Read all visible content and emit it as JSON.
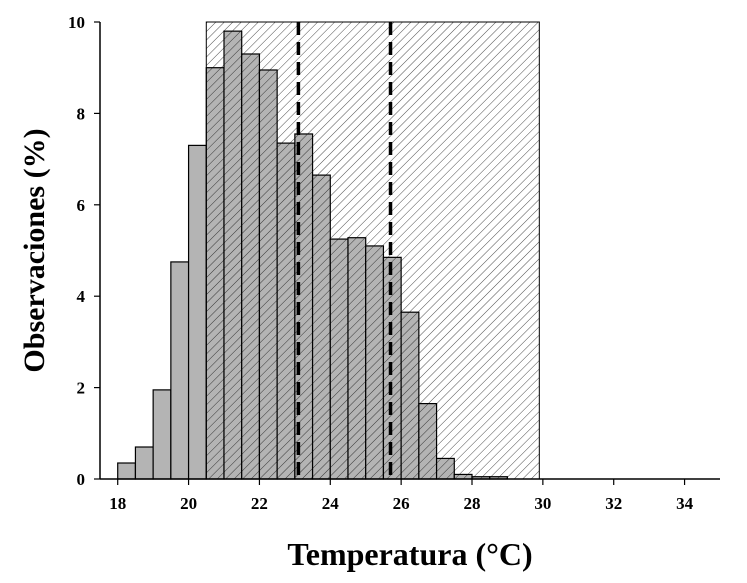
{
  "chart_data": {
    "type": "bar",
    "title": "",
    "xlabel": "Temperatura (°C)",
    "ylabel": "Observaciones (%)",
    "xlim": [
      17.5,
      35
    ],
    "ylim": [
      0,
      10
    ],
    "x_ticks": [
      18,
      20,
      22,
      24,
      26,
      28,
      30,
      32,
      34
    ],
    "y_ticks": [
      0,
      2,
      4,
      6,
      8,
      10
    ],
    "bin_width": 0.5,
    "bins": [
      {
        "start": 18.0,
        "value": 0.35
      },
      {
        "start": 18.5,
        "value": 0.7
      },
      {
        "start": 19.0,
        "value": 1.95
      },
      {
        "start": 19.5,
        "value": 4.75
      },
      {
        "start": 20.0,
        "value": 7.3
      },
      {
        "start": 20.5,
        "value": 9.0
      },
      {
        "start": 21.0,
        "value": 9.8
      },
      {
        "start": 21.5,
        "value": 9.3
      },
      {
        "start": 22.0,
        "value": 8.95
      },
      {
        "start": 22.5,
        "value": 7.35
      },
      {
        "start": 23.0,
        "value": 7.55
      },
      {
        "start": 23.5,
        "value": 6.65
      },
      {
        "start": 24.0,
        "value": 5.25
      },
      {
        "start": 24.5,
        "value": 5.28
      },
      {
        "start": 25.0,
        "value": 5.1
      },
      {
        "start": 25.5,
        "value": 4.85
      },
      {
        "start": 26.0,
        "value": 3.65
      },
      {
        "start": 26.5,
        "value": 1.65
      },
      {
        "start": 27.0,
        "value": 0.45
      },
      {
        "start": 27.5,
        "value": 0.1
      },
      {
        "start": 28.0,
        "value": 0.05
      },
      {
        "start": 28.5,
        "value": 0.05
      }
    ],
    "shaded_region": {
      "x_start": 20.5,
      "x_end": 29.9,
      "pattern": "diagonal-hatch"
    },
    "vertical_lines": [
      {
        "x": 23.1,
        "style": "dashed"
      },
      {
        "x": 25.7,
        "style": "dashed"
      }
    ],
    "colors": {
      "bar_fill": "#b4b4b4",
      "bar_stroke": "#000000",
      "hatch": "#000000"
    },
    "grid": false,
    "legend": "none"
  }
}
